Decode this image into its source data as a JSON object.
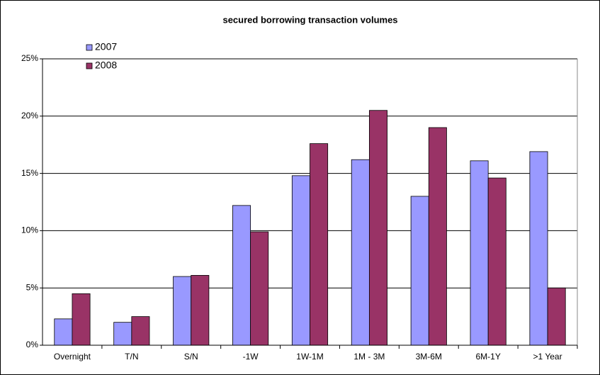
{
  "chart_data": {
    "type": "bar",
    "title": "secured borrowing transaction volumes",
    "categories": [
      "Overnight",
      "T/N",
      "S/N",
      "-1W",
      "1W-1M",
      "1M - 3M",
      "3M-6M",
      "6M-1Y",
      ">1 Year"
    ],
    "series": [
      {
        "name": "2007",
        "color": "#9999ff",
        "values": [
          2.3,
          2.0,
          6.0,
          12.2,
          14.8,
          16.2,
          13.0,
          16.1,
          16.9
        ]
      },
      {
        "name": "2008",
        "color": "#993366",
        "values": [
          4.5,
          2.5,
          6.1,
          9.9,
          17.6,
          20.5,
          19.0,
          14.6,
          5.0
        ]
      }
    ],
    "ylim": [
      0,
      25
    ],
    "yticks": [
      {
        "value": 0,
        "label": "0%"
      },
      {
        "value": 5,
        "label": "5%"
      },
      {
        "value": 10,
        "label": "10%"
      },
      {
        "value": 15,
        "label": "15%"
      },
      {
        "value": 20,
        "label": "20%"
      },
      {
        "value": 25,
        "label": "25%"
      }
    ],
    "grid": true,
    "legend": "upper left"
  }
}
